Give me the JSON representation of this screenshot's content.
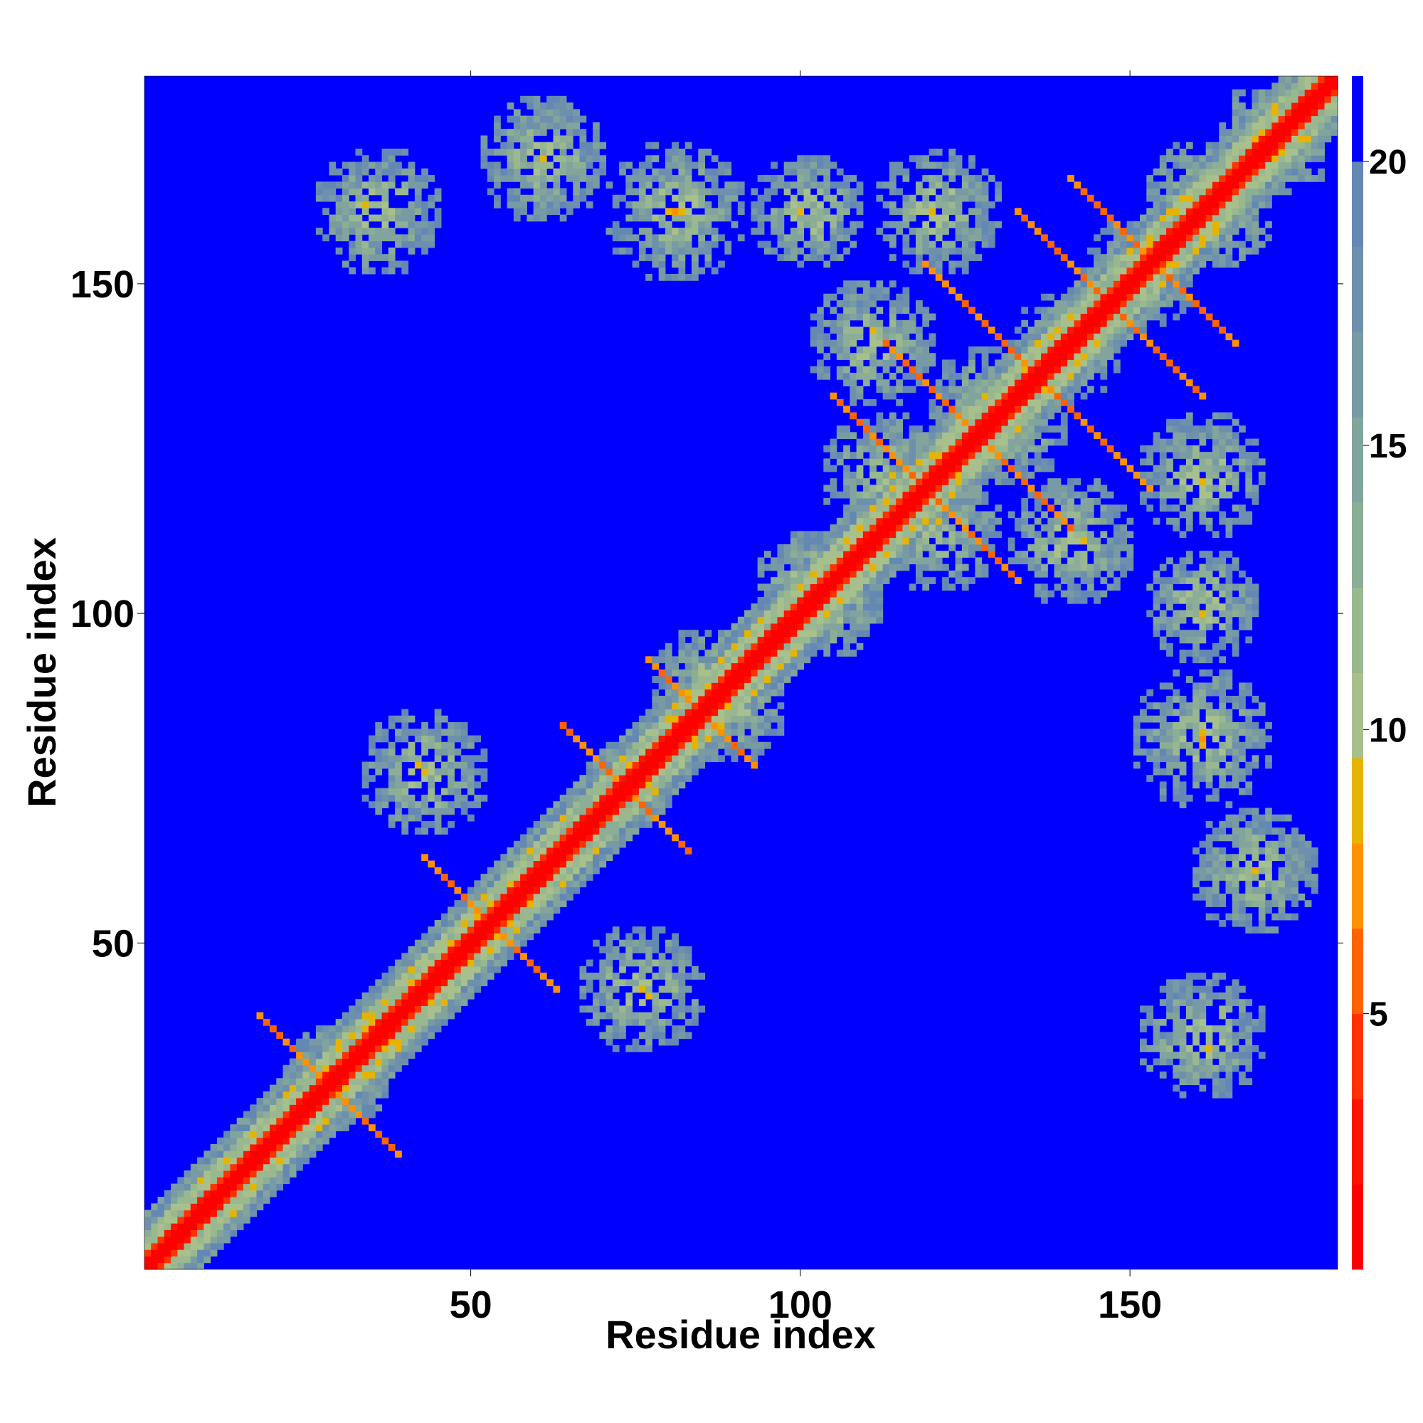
{
  "chart_data": {
    "type": "heatmap",
    "title": "",
    "xlabel": "Residue index",
    "ylabel": "Residue index",
    "n_residues": 181,
    "xlim": [
      1,
      181
    ],
    "ylim": [
      1,
      181
    ],
    "x_ticks": [
      50,
      100,
      150
    ],
    "y_ticks": [
      50,
      100,
      150
    ],
    "colorbar": {
      "range": [
        0.5,
        21.5
      ],
      "ticks": [
        5,
        10,
        15,
        20
      ],
      "levels": [
        {
          "min": 0.5,
          "max": 2.0,
          "color": "#ff0000"
        },
        {
          "min": 2.0,
          "max": 3.5,
          "color": "#ff1400"
        },
        {
          "min": 3.5,
          "max": 5.0,
          "color": "#ff3200"
        },
        {
          "min": 5.0,
          "max": 6.5,
          "color": "#ff6400"
        },
        {
          "min": 6.5,
          "max": 8.0,
          "color": "#ff9100"
        },
        {
          "min": 8.0,
          "max": 9.5,
          "color": "#e6b400"
        },
        {
          "min": 9.5,
          "max": 11.0,
          "color": "#a8c08c"
        },
        {
          "min": 11.0,
          "max": 12.5,
          "color": "#9ab890"
        },
        {
          "min": 12.5,
          "max": 14.0,
          "color": "#8cae96"
        },
        {
          "min": 14.0,
          "max": 15.5,
          "color": "#82a49c"
        },
        {
          "min": 15.5,
          "max": 17.0,
          "color": "#789aa4"
        },
        {
          "min": 17.0,
          "max": 18.5,
          "color": "#6e90ac"
        },
        {
          "min": 18.5,
          "max": 20.0,
          "color": "#6488b4"
        },
        {
          "min": 20.0,
          "max": 21.5,
          "color": "#0000ff"
        }
      ]
    },
    "description_features": {
      "diagonal_band_halfwidth": 1.5,
      "helix_contacts": [
        {
          "i": [
            17,
            38
          ],
          "j": [
            38,
            17
          ]
        },
        {
          "i": [
            42,
            62
          ],
          "j": [
            62,
            42
          ]
        },
        {
          "i": [
            63,
            82
          ],
          "j": [
            82,
            63
          ]
        },
        {
          "i": [
            76,
            92
          ],
          "j": [
            92,
            76
          ]
        },
        {
          "i": [
            104,
            132
          ],
          "j": [
            132,
            104
          ]
        },
        {
          "i": [
            112,
            140
          ],
          "j": [
            140,
            112
          ]
        },
        {
          "i": [
            118,
            152
          ],
          "j": [
            152,
            118
          ]
        },
        {
          "i": [
            132,
            160
          ],
          "j": [
            160,
            132
          ]
        },
        {
          "i": [
            140,
            165
          ],
          "j": [
            165,
            140
          ]
        }
      ]
    }
  }
}
